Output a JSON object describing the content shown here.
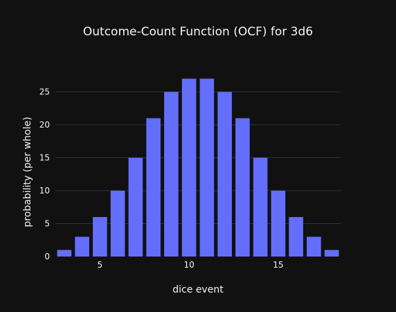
{
  "chart_data": {
    "type": "bar",
    "title": "Outcome-Count Function (OCF) for 3d6",
    "xlabel": "dice event",
    "ylabel": "probability (per whole)",
    "x": [
      3,
      4,
      5,
      6,
      7,
      8,
      9,
      10,
      11,
      12,
      13,
      14,
      15,
      16,
      17,
      18
    ],
    "values": [
      1,
      3,
      6,
      10,
      15,
      21,
      25,
      27,
      27,
      25,
      21,
      15,
      10,
      6,
      3,
      1
    ],
    "xlim": [
      2.5,
      18.5
    ],
    "ylim": [
      0,
      28.42
    ],
    "xticks": [
      5,
      10,
      15
    ],
    "yticks": [
      0,
      5,
      10,
      15,
      20,
      25
    ],
    "grid": true,
    "legend": "none",
    "colors": {
      "bar": "#636efa",
      "background": "#111111",
      "grid": "#283442",
      "text": "#f2f5fa"
    }
  }
}
